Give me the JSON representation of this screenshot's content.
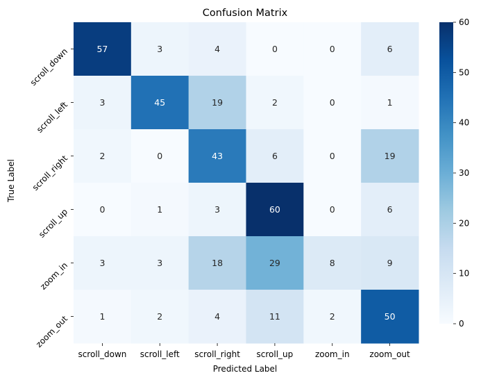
{
  "chart_data": {
    "type": "heatmap",
    "title": "Confusion Matrix",
    "xlabel": "Predicted Label",
    "ylabel": "True Label",
    "x_categories": [
      "scroll_down",
      "scroll_left",
      "scroll_right",
      "scroll_up",
      "zoom_in",
      "zoom_out"
    ],
    "y_categories": [
      "scroll_down",
      "scroll_left",
      "scroll_right",
      "scroll_up",
      "zoom_in",
      "zoom_out"
    ],
    "values": [
      [
        57,
        3,
        4,
        0,
        0,
        6
      ],
      [
        3,
        45,
        19,
        2,
        0,
        1
      ],
      [
        2,
        0,
        43,
        6,
        0,
        19
      ],
      [
        0,
        1,
        3,
        60,
        0,
        6
      ],
      [
        3,
        3,
        18,
        29,
        8,
        9
      ],
      [
        1,
        2,
        4,
        11,
        2,
        50
      ]
    ],
    "colormap": "Blues",
    "color_range": [
      0,
      60
    ],
    "colorbar_ticks": [
      0,
      10,
      20,
      30,
      40,
      50,
      60
    ]
  }
}
